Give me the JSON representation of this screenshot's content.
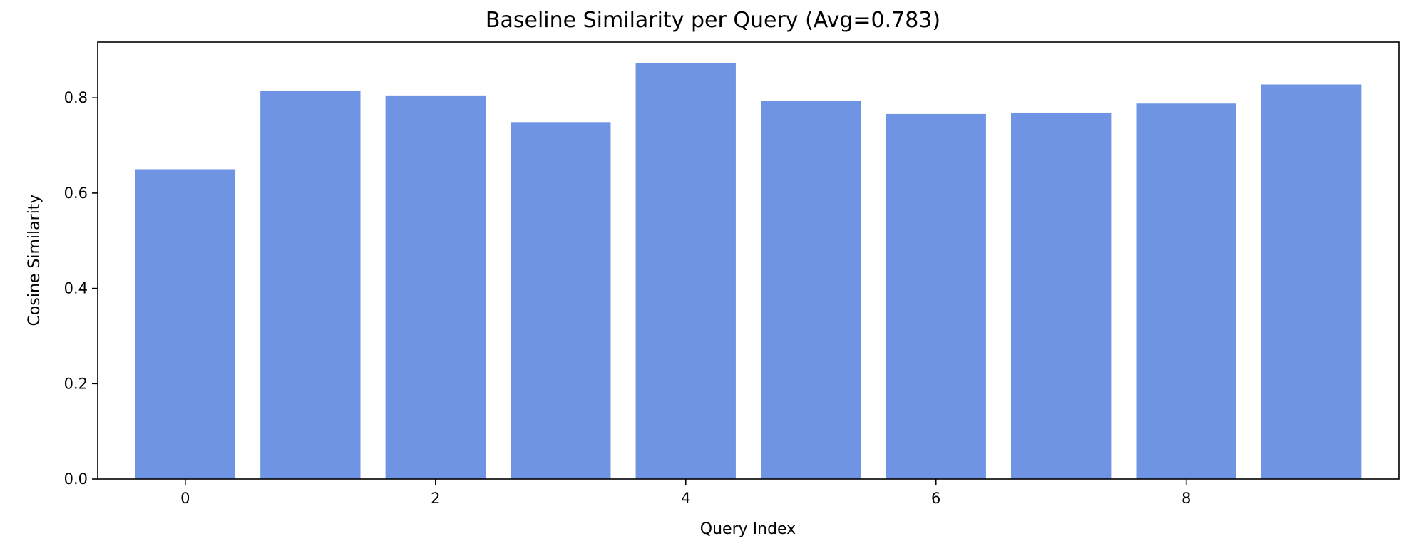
{
  "chart_data": {
    "type": "bar",
    "title": "Baseline Similarity per Query (Avg=0.783)",
    "xlabel": "Query Index",
    "ylabel": "Cosine Similarity",
    "categories": [
      0,
      1,
      2,
      3,
      4,
      5,
      6,
      7,
      8,
      9
    ],
    "values": [
      0.65,
      0.815,
      0.805,
      0.749,
      0.873,
      0.793,
      0.766,
      0.769,
      0.788,
      0.828
    ],
    "xlim": [
      -0.7,
      9.7
    ],
    "ylim": [
      0,
      0.917
    ],
    "xticks": [
      0,
      2,
      4,
      6,
      8
    ],
    "yticks": [
      0.0,
      0.2,
      0.4,
      0.6,
      0.8
    ],
    "ytick_labels": [
      "0.0",
      "0.2",
      "0.4",
      "0.6",
      "0.8"
    ],
    "bar_color": "#6f94e4",
    "grid": false,
    "legend": "none"
  }
}
